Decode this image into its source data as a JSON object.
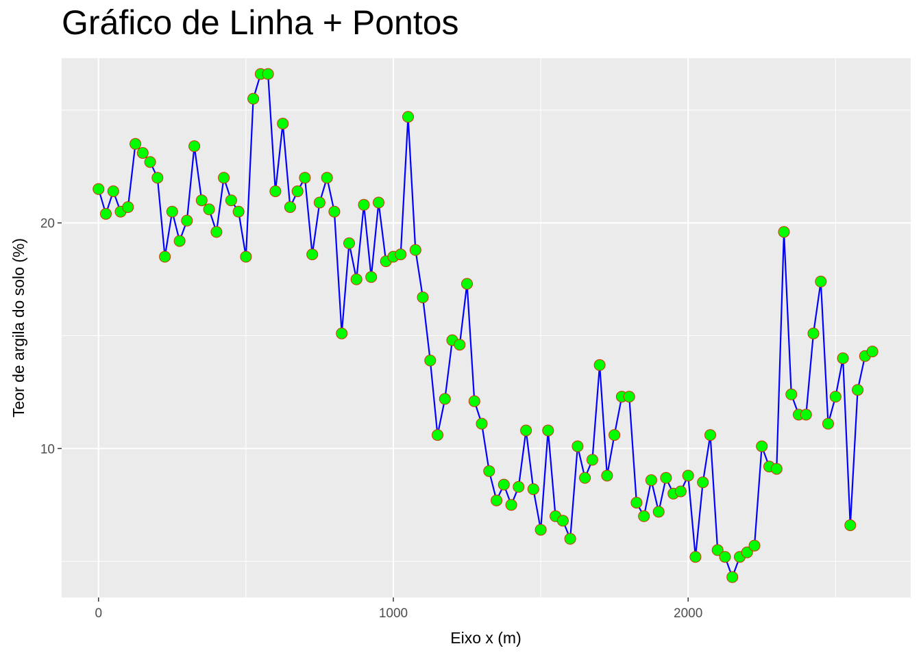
{
  "chart_data": {
    "type": "line",
    "title": "Gráfico de Linha + Pontos",
    "xlabel": "Eixo x (m)",
    "ylabel": "Teor de argila do solo (%)",
    "xlim": [
      -125,
      2755
    ],
    "ylim": [
      3.4,
      27.3
    ],
    "x_ticks": [
      0,
      1000,
      2000
    ],
    "y_ticks": [
      10,
      20
    ],
    "grid": true,
    "legend": "none",
    "colors": {
      "panel": "#ebebeb",
      "grid": "#ffffff",
      "line": "#0000ff",
      "point_fill": "#00ff00",
      "point_stroke": "#cc3300"
    },
    "series": [
      {
        "x": [
          0,
          25,
          50,
          75,
          100,
          125,
          150,
          175,
          200,
          225,
          250,
          275,
          300,
          325,
          350,
          375,
          400,
          425,
          450,
          475,
          500,
          525,
          550,
          575,
          600,
          625,
          650,
          675,
          700,
          725,
          750,
          775,
          800,
          825,
          850,
          875,
          900,
          925,
          950,
          975,
          1000,
          1025,
          1050,
          1075,
          1100,
          1125,
          1150,
          1175,
          1200,
          1225,
          1250,
          1275,
          1300,
          1325,
          1350,
          1375,
          1400,
          1425,
          1450,
          1475,
          1500,
          1525,
          1550,
          1575,
          1600,
          1625,
          1650,
          1675,
          1700,
          1725,
          1750,
          1775,
          1800,
          1825,
          1850,
          1875,
          1900,
          1925,
          1950,
          1975,
          2000,
          2025,
          2050,
          2075,
          2100,
          2125,
          2150,
          2175,
          2200,
          2225,
          2250,
          2275,
          2300,
          2325,
          2350,
          2375,
          2400,
          2425,
          2450,
          2475,
          2500,
          2525,
          2550,
          2575,
          2600,
          2625
        ],
        "values": [
          21.5,
          20.4,
          21.4,
          20.5,
          20.7,
          23.5,
          23.1,
          22.7,
          22.0,
          18.5,
          20.5,
          19.2,
          20.1,
          23.4,
          21.0,
          20.6,
          19.6,
          22.0,
          21.0,
          20.5,
          18.5,
          25.5,
          26.6,
          26.6,
          21.4,
          24.4,
          20.7,
          21.4,
          22.0,
          18.6,
          20.9,
          22.0,
          20.5,
          15.1,
          19.1,
          17.5,
          20.8,
          17.6,
          20.9,
          18.3,
          18.5,
          18.6,
          24.7,
          18.8,
          16.7,
          13.9,
          10.6,
          12.2,
          14.8,
          14.6,
          17.3,
          12.1,
          11.1,
          9.0,
          7.7,
          8.4,
          7.5,
          8.3,
          10.8,
          8.2,
          6.4,
          10.8,
          7.0,
          6.8,
          6.0,
          10.1,
          8.7,
          9.5,
          13.7,
          8.8,
          10.6,
          12.3,
          12.3,
          7.6,
          7.0,
          8.6,
          7.2,
          8.7,
          8.0,
          8.1,
          8.8,
          5.2,
          8.5,
          10.6,
          5.5,
          5.2,
          4.3,
          5.2,
          5.4,
          5.7,
          10.1,
          9.2,
          9.1,
          19.6,
          12.4,
          11.5,
          11.5,
          15.1,
          17.4,
          11.1,
          12.3,
          14.0,
          6.6,
          12.6,
          14.1,
          14.3
        ]
      }
    ]
  }
}
